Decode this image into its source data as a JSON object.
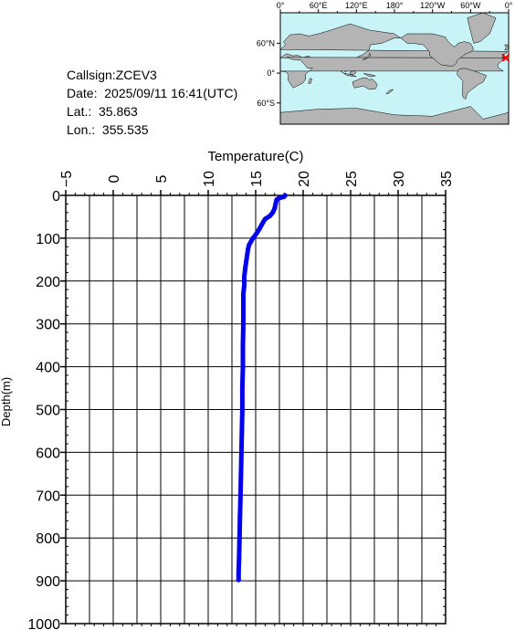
{
  "info": {
    "callsign": "Callsign:ZCEV3",
    "date": "Date:  2025/09/11 16:41(UTC)",
    "lat": "Lat.:  35.863",
    "lon": "Lon.:  355.535"
  },
  "map": {
    "lon_labels": [
      "0°",
      "60°E",
      "120°E",
      "180°",
      "120°W",
      "60°W",
      "0°"
    ],
    "lat_labels": [
      "60°N",
      "0°",
      "60°S"
    ],
    "ocean_color": "#c8f4f8",
    "land_color": "#b4b4b4",
    "marker_color": "#ff0000",
    "marker_lon": 355.535,
    "marker_lat": 35.863
  },
  "chart_data": {
    "type": "line",
    "xlabel": "Temperature(C)",
    "ylabel": "Depth(m)",
    "xlim": [
      -5,
      35
    ],
    "ylim": [
      0,
      1000
    ],
    "y_inverted": true,
    "x_ticks": [
      "−5",
      "0",
      "5",
      "10",
      "15",
      "20",
      "25",
      "30",
      "35"
    ],
    "y_ticks": [
      "0",
      "100",
      "200",
      "300",
      "400",
      "500",
      "600",
      "700",
      "800",
      "900",
      "1000"
    ],
    "grid": true,
    "series": [
      {
        "color": "#0000ee",
        "points": [
          [
            18.1,
            0
          ],
          [
            18.0,
            3
          ],
          [
            17.5,
            6
          ],
          [
            17.2,
            10
          ],
          [
            17.1,
            20
          ],
          [
            17.0,
            30
          ],
          [
            16.8,
            40
          ],
          [
            16.5,
            48
          ],
          [
            16.0,
            55
          ],
          [
            15.8,
            62
          ],
          [
            15.6,
            70
          ],
          [
            15.4,
            78
          ],
          [
            15.2,
            85
          ],
          [
            15.0,
            92
          ],
          [
            14.7,
            100
          ],
          [
            14.5,
            108
          ],
          [
            14.3,
            116
          ],
          [
            14.2,
            125
          ],
          [
            14.1,
            140
          ],
          [
            14.0,
            155
          ],
          [
            13.9,
            170
          ],
          [
            13.8,
            190
          ],
          [
            13.8,
            210
          ],
          [
            13.7,
            230
          ],
          [
            13.7,
            260
          ],
          [
            13.7,
            300
          ],
          [
            13.65,
            350
          ],
          [
            13.65,
            400
          ],
          [
            13.6,
            450
          ],
          [
            13.6,
            500
          ],
          [
            13.55,
            550
          ],
          [
            13.5,
            600
          ],
          [
            13.45,
            650
          ],
          [
            13.4,
            700
          ],
          [
            13.35,
            750
          ],
          [
            13.3,
            800
          ],
          [
            13.25,
            850
          ],
          [
            13.2,
            880
          ],
          [
            13.2,
            898
          ]
        ]
      }
    ]
  }
}
